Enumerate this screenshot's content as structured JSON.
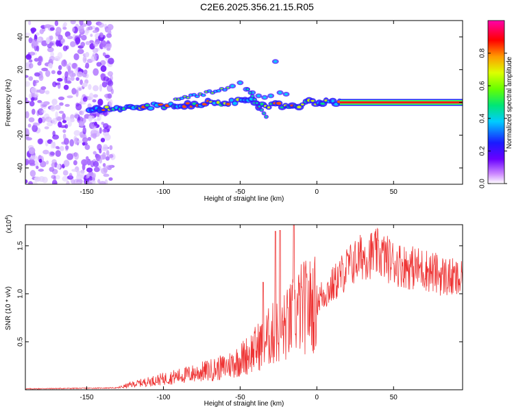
{
  "title": "C2E6.2025.356.21.15.R05",
  "chart_data": [
    {
      "type": "heatmap",
      "xlabel": "Height of straight line (km)",
      "ylabel": "Frequency (Hz)",
      "xlim": [
        -190,
        95
      ],
      "ylim": [
        -50,
        50
      ],
      "xticks": [
        -150,
        -100,
        -50,
        0,
        50
      ],
      "yticks": [
        -40,
        -20,
        0,
        20,
        40
      ],
      "colorbar": {
        "label": "Normalized spectral amplitude",
        "range": [
          0.0,
          1.0
        ],
        "ticks": [
          0.0,
          0.2,
          0.4,
          0.6,
          0.8
        ]
      },
      "features": [
        {
          "name": "noise region",
          "x_range": [
            -190,
            -133
          ],
          "y_range": [
            -50,
            50
          ]
        },
        {
          "name": "tone",
          "x_range": [
            15,
            95
          ],
          "frequency": 0,
          "amplitude": 1.0
        }
      ]
    },
    {
      "type": "line",
      "xlabel": "Height of straight line (km)",
      "ylabel": "SNR (10 * v/v)",
      "multiplier_label": "(x10",
      "multiplier_exp": "4",
      "xlim": [
        -190,
        95
      ],
      "ylim": [
        0,
        1.72
      ],
      "xticks": [
        -150,
        -100,
        -50,
        0,
        50
      ],
      "yticks": [
        0.5,
        1.0,
        1.5
      ],
      "envelope_points": [
        [
          -190,
          0.01
        ],
        [
          -130,
          0.02
        ],
        [
          -120,
          0.06
        ],
        [
          -100,
          0.12
        ],
        [
          -80,
          0.18
        ],
        [
          -60,
          0.25
        ],
        [
          -50,
          0.33
        ],
        [
          -40,
          0.45
        ],
        [
          -30,
          0.6
        ],
        [
          -20,
          0.7
        ],
        [
          -10,
          0.9
        ],
        [
          0,
          0.95
        ],
        [
          10,
          1.1
        ],
        [
          20,
          1.3
        ],
        [
          30,
          1.42
        ],
        [
          40,
          1.45
        ],
        [
          50,
          1.35
        ],
        [
          60,
          1.3
        ],
        [
          70,
          1.28
        ],
        [
          80,
          1.22
        ],
        [
          95,
          1.15
        ]
      ],
      "peaks": [
        {
          "x": -35,
          "y": 1.12
        },
        {
          "x": -27,
          "y": 1.65
        },
        {
          "x": -24,
          "y": 1.66
        },
        {
          "x": -15,
          "y": 1.72
        }
      ],
      "color": "#ee3333"
    }
  ]
}
